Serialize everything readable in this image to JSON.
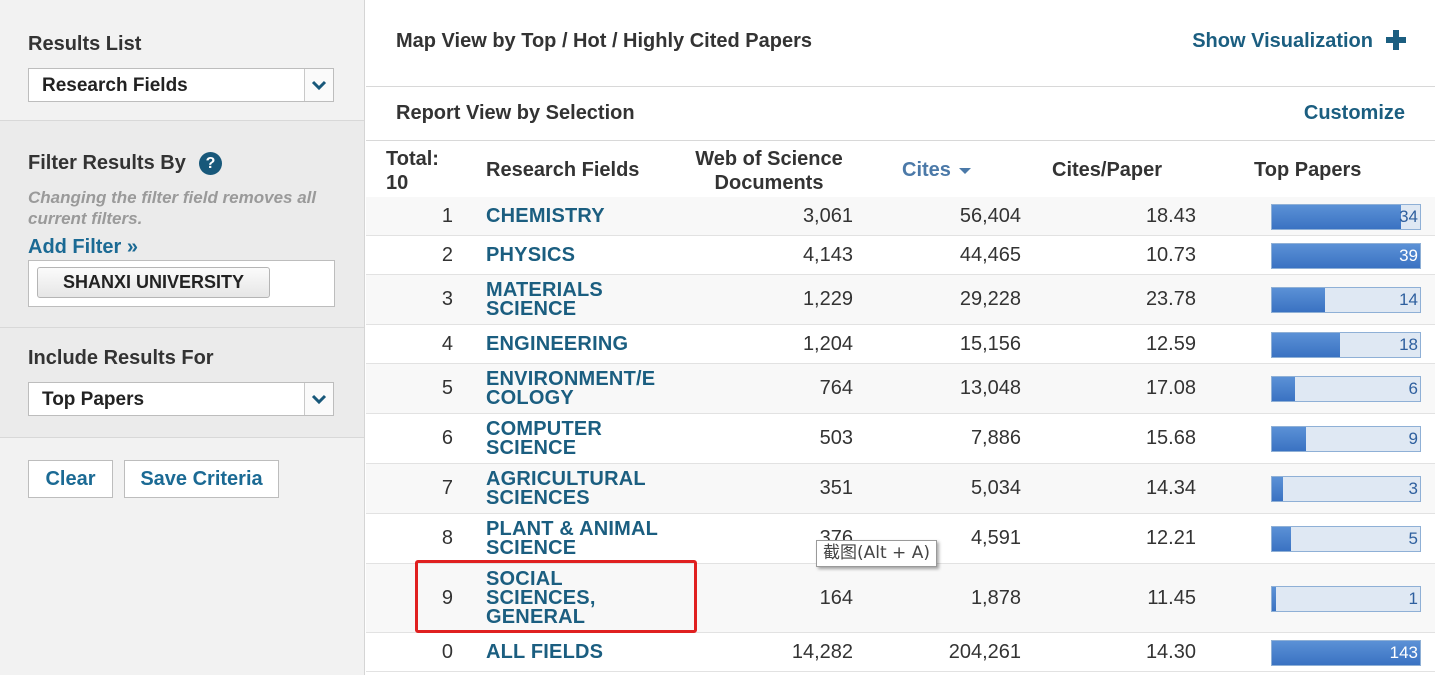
{
  "sidebar": {
    "results_list": {
      "title": "Results List",
      "selected": "Research Fields"
    },
    "filter": {
      "title": "Filter Results By",
      "note": "Changing the filter field removes all current filters.",
      "add_filter": "Add Filter »",
      "chip": "SHANXI UNIVERSITY"
    },
    "include": {
      "title": "Include Results For",
      "selected": "Top Papers"
    },
    "actions": {
      "clear": "Clear",
      "save": "Save Criteria"
    }
  },
  "main": {
    "map_title": "Map View by Top / Hot / Highly Cited Papers",
    "show_visualization": "Show Visualization",
    "report_title": "Report View by Selection",
    "customize": "Customize"
  },
  "table": {
    "headers": {
      "total": "Total:\n10",
      "field": "Research Fields",
      "docs": "Web of Science\nDocuments",
      "cites": "Cites",
      "cpp": "Cites/Paper",
      "top": "Top Papers"
    },
    "rows": [
      {
        "rank": "1",
        "field": "CHEMISTRY",
        "docs": "3,061",
        "cites": "56,404",
        "cpp": "18.43",
        "top": "34",
        "top_value": 34
      },
      {
        "rank": "2",
        "field": "PHYSICS",
        "docs": "4,143",
        "cites": "44,465",
        "cpp": "10.73",
        "top": "39",
        "top_value": 39
      },
      {
        "rank": "3",
        "field": "MATERIALS SCIENCE",
        "docs": "1,229",
        "cites": "29,228",
        "cpp": "23.78",
        "top": "14",
        "top_value": 14
      },
      {
        "rank": "4",
        "field": "ENGINEERING",
        "docs": "1,204",
        "cites": "15,156",
        "cpp": "12.59",
        "top": "18",
        "top_value": 18
      },
      {
        "rank": "5",
        "field": "ENVIRONMENT/E COLOGY",
        "docs": "764",
        "cites": "13,048",
        "cpp": "17.08",
        "top": "6",
        "top_value": 6
      },
      {
        "rank": "6",
        "field": "COMPUTER SCIENCE",
        "docs": "503",
        "cites": "7,886",
        "cpp": "15.68",
        "top": "9",
        "top_value": 9
      },
      {
        "rank": "7",
        "field": "AGRICULTURAL SCIENCES",
        "docs": "351",
        "cites": "5,034",
        "cpp": "14.34",
        "top": "3",
        "top_value": 3
      },
      {
        "rank": "8",
        "field": "PLANT & ANIMAL SCIENCE",
        "docs": "376",
        "cites": "4,591",
        "cpp": "12.21",
        "top": "5",
        "top_value": 5
      },
      {
        "rank": "9",
        "field": "SOCIAL SCIENCES, GENERAL",
        "docs": "164",
        "cites": "1,878",
        "cpp": "11.45",
        "top": "1",
        "top_value": 1
      },
      {
        "rank": "0",
        "field": "ALL FIELDS",
        "docs": "14,282",
        "cites": "204,261",
        "cpp": "14.30",
        "top": "143",
        "top_value": 143
      }
    ]
  },
  "tooltip": "截图(Alt + A)",
  "colors": {
    "link": "#1b5e80",
    "bar": "#3a72c2",
    "highlight": "#e02020"
  }
}
